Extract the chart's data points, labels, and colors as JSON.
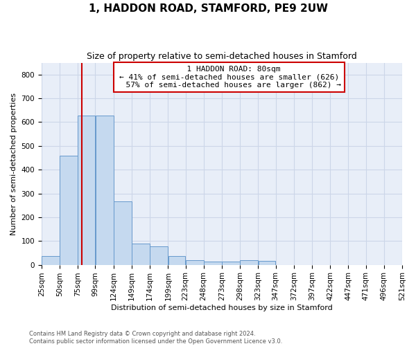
{
  "title": "1, HADDON ROAD, STAMFORD, PE9 2UW",
  "subtitle": "Size of property relative to semi-detached houses in Stamford",
  "xlabel": "Distribution of semi-detached houses by size in Stamford",
  "ylabel": "Number of semi-detached properties",
  "property_size": 80,
  "property_label": "1 HADDON ROAD: 80sqm",
  "pct_smaller": 41,
  "pct_larger": 57,
  "count_smaller": 626,
  "count_larger": 862,
  "bin_edges": [
    25,
    50,
    75,
    99,
    124,
    149,
    174,
    199,
    223,
    248,
    273,
    298,
    323,
    347,
    372,
    397,
    422,
    447,
    471,
    496,
    521
  ],
  "bar_heights": [
    38,
    460,
    628,
    628,
    268,
    88,
    78,
    38,
    18,
    14,
    14,
    18,
    15,
    0,
    0,
    0,
    0,
    0,
    0,
    0
  ],
  "bar_color": "#c5d9ef",
  "bar_edge_color": "#6699cc",
  "red_line_color": "#cc0000",
  "annotation_box_color": "#cc0000",
  "grid_color": "#ccd6e8",
  "bg_color": "#e8eef8",
  "footer_text": "Contains HM Land Registry data © Crown copyright and database right 2024.\nContains public sector information licensed under the Open Government Licence v3.0.",
  "ylim": [
    0,
    850
  ],
  "yticks": [
    0,
    100,
    200,
    300,
    400,
    500,
    600,
    700,
    800
  ],
  "title_fontsize": 11,
  "subtitle_fontsize": 9,
  "axis_label_fontsize": 8,
  "tick_fontsize": 7.5,
  "annotation_fontsize": 8,
  "figsize": [
    6.0,
    5.0
  ],
  "dpi": 100
}
